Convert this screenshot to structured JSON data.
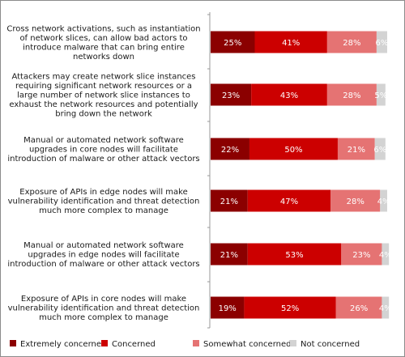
{
  "chart_data": {
    "type": "bar",
    "stacked": true,
    "orientation": "horizontal",
    "categories": [
      "Cross network activations, such as instantiation of network slices, can allow bad actors to introduce malware that can bring entire networks down",
      "Attackers may create network slice instances requiring significant network resources or a large number of network slice instances to exhaust the network resources and potentially bring down the network",
      "Manual or automated network software upgrades in core nodes will facilitate introduction of malware or other attack vectors",
      "Exposure of APIs in edge nodes will make vulnerability identification and threat detection much more complex to manage",
      "Manual or automated network software upgrades in edge nodes will facilitate introduction of malware or other attack vectors",
      "Exposure of APIs in core nodes will make vulnerability identification and threat detection much more complex to manage"
    ],
    "category_lines": [
      [
        "Cross network activations, such as instantiation",
        "of network slices, can allow bad actors to",
        "introduce malware that can bring entire",
        "networks down"
      ],
      [
        "Attackers may create network slice instances",
        "requiring significant network resources or a",
        "large number of network slice instances to",
        "exhaust the network resources and potentially",
        "bring down the network"
      ],
      [
        "Manual or automated network software",
        "upgrades in core nodes will facilitate",
        "introduction of malware or other attack vectors"
      ],
      [
        "Exposure of APIs in edge nodes will make",
        "vulnerability identification and threat detection",
        "much more complex to manage"
      ],
      [
        "Manual or automated network software",
        "upgrades in edge nodes will facilitate",
        "introduction of malware or other attack vectors"
      ],
      [
        "Exposure of APIs in core nodes will make",
        "vulnerability identification and threat detection",
        "much more complex to manage"
      ]
    ],
    "series": [
      {
        "name": "Extremely concerned",
        "color": "#8b0000",
        "values": [
          25,
          23,
          22,
          21,
          21,
          19
        ]
      },
      {
        "name": "Concerned",
        "color": "#cc0000",
        "values": [
          41,
          43,
          50,
          47,
          53,
          52
        ]
      },
      {
        "name": "Somewhat concerned",
        "color": "#e57373",
        "values": [
          28,
          28,
          21,
          28,
          23,
          26
        ]
      },
      {
        "name": "Not concerned",
        "color": "#d3d3d3",
        "values": [
          6,
          5,
          6,
          4,
          4,
          4
        ]
      }
    ],
    "value_suffix": "%",
    "xlim": [
      0,
      100
    ],
    "legend_position": "bottom",
    "grid": false
  }
}
